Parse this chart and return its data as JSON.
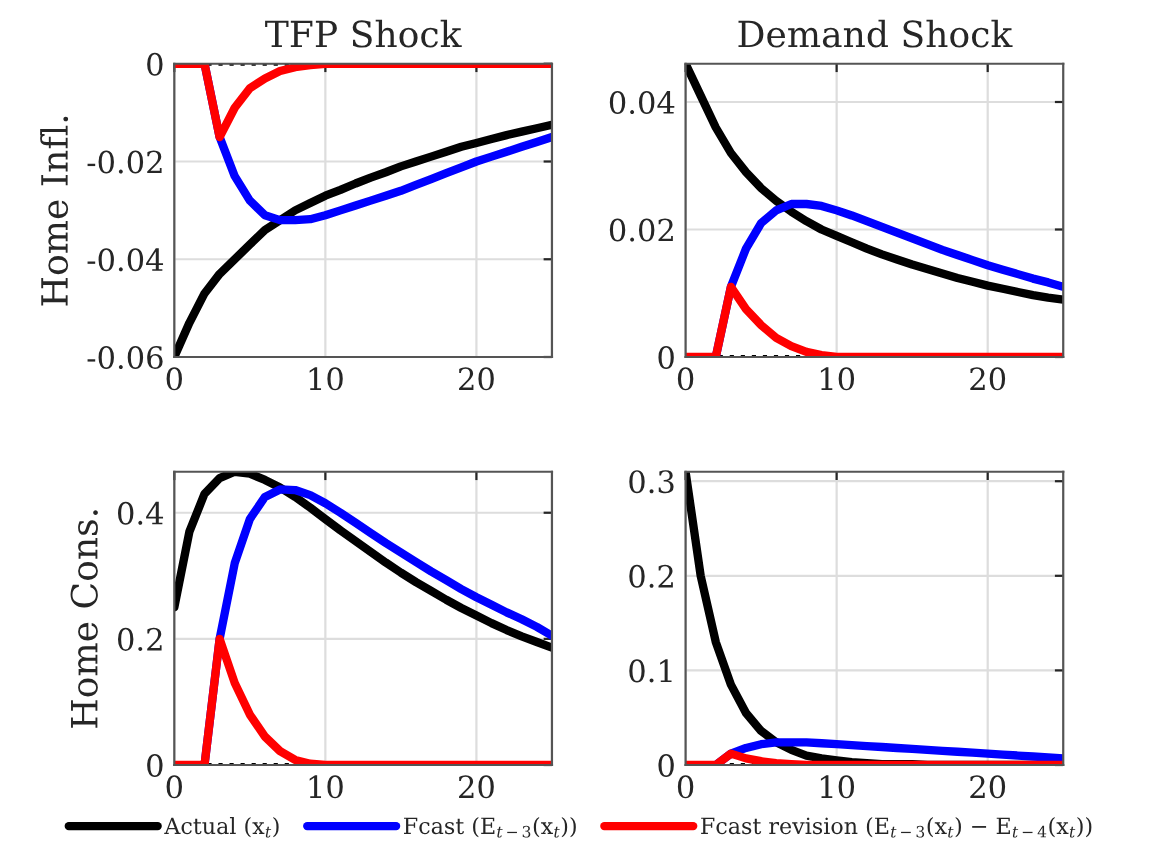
{
  "chart_data": [
    {
      "type": "line",
      "title": "TFP Shock",
      "ylabel": "Home Infl.",
      "x": [
        0,
        1,
        2,
        3,
        4,
        5,
        6,
        7,
        8,
        9,
        10,
        11,
        12,
        13,
        14,
        15,
        16,
        17,
        18,
        19,
        20,
        21,
        22,
        23,
        24,
        25
      ],
      "xlim": [
        0,
        25
      ],
      "xticks": [
        0,
        10,
        20
      ],
      "ylim": [
        -0.06,
        0
      ],
      "yticks": [
        -0.06,
        -0.04,
        -0.02,
        0
      ],
      "grid": true,
      "legend": "bottom",
      "line_style": "solid",
      "ref_lines": [
        {
          "axis": "y",
          "value": 0,
          "color": "#000000",
          "line_style": "dotted"
        }
      ],
      "series": [
        {
          "name": "Actual (x$_{t}$)",
          "color": "#000000",
          "values": [
            -0.06,
            -0.053,
            -0.047,
            -0.043,
            -0.04,
            -0.037,
            -0.034,
            -0.032,
            -0.03,
            -0.0285,
            -0.027,
            -0.0258,
            -0.0245,
            -0.0233,
            -0.0222,
            -0.021,
            -0.02,
            -0.019,
            -0.018,
            -0.017,
            -0.0162,
            -0.0154,
            -0.0146,
            -0.0139,
            -0.0132,
            -0.0125
          ]
        },
        {
          "name": "Fcast (E$_{t−3}$(x$_{t}$))",
          "color": "#0000ff",
          "values": [
            null,
            null,
            0,
            -0.015,
            -0.023,
            -0.028,
            -0.031,
            -0.032,
            -0.032,
            -0.0318,
            -0.031,
            -0.03,
            -0.029,
            -0.028,
            -0.027,
            -0.026,
            -0.0248,
            -0.0236,
            -0.0224,
            -0.0212,
            -0.02,
            -0.019,
            -0.018,
            -0.017,
            -0.016,
            -0.015
          ]
        },
        {
          "name": "Fcast revision (E$_{t−3}$(x$_{t}$) − E$_{t−4}$(x$_{t}$))",
          "color": "#ff0000",
          "values": [
            0,
            0,
            0,
            -0.015,
            -0.009,
            -0.005,
            -0.003,
            -0.0015,
            -0.0007,
            -0.0003,
            0,
            0,
            0,
            0,
            0,
            0,
            0,
            0,
            0,
            0,
            0,
            0,
            0,
            0,
            0,
            0
          ]
        }
      ]
    },
    {
      "type": "line",
      "title": "Demand Shock",
      "x": [
        0,
        1,
        2,
        3,
        4,
        5,
        6,
        7,
        8,
        9,
        10,
        11,
        12,
        13,
        14,
        15,
        16,
        17,
        18,
        19,
        20,
        21,
        22,
        23,
        24,
        25
      ],
      "xlim": [
        0,
        25
      ],
      "xticks": [
        0,
        10,
        20
      ],
      "ylim": [
        0,
        0.046
      ],
      "yticks": [
        0,
        0.02,
        0.04
      ],
      "grid": true,
      "line_style": "solid",
      "ref_lines": [
        {
          "axis": "y",
          "value": 0,
          "color": "#000000",
          "line_style": "dotted"
        }
      ],
      "series": [
        {
          "color": "#000000",
          "values": [
            0.046,
            0.041,
            0.036,
            0.032,
            0.029,
            0.0265,
            0.0245,
            0.0228,
            0.0213,
            0.02,
            0.019,
            0.018,
            0.017,
            0.0161,
            0.0153,
            0.0145,
            0.0138,
            0.0131,
            0.0124,
            0.0118,
            0.0112,
            0.0107,
            0.0102,
            0.0097,
            0.0093,
            0.009
          ]
        },
        {
          "color": "#0000ff",
          "values": [
            null,
            null,
            0,
            0.011,
            0.017,
            0.021,
            0.023,
            0.024,
            0.024,
            0.0237,
            0.023,
            0.0222,
            0.0213,
            0.0204,
            0.0195,
            0.0186,
            0.0177,
            0.0168,
            0.016,
            0.0152,
            0.0144,
            0.0137,
            0.013,
            0.0123,
            0.0117,
            0.011
          ]
        },
        {
          "color": "#ff0000",
          "values": [
            0,
            0,
            0,
            0.011,
            0.0075,
            0.005,
            0.003,
            0.0017,
            0.0008,
            0.0003,
            0,
            0,
            0,
            0,
            0,
            0,
            0,
            0,
            0,
            0,
            0,
            0,
            0,
            0,
            0,
            0
          ]
        }
      ]
    },
    {
      "type": "line",
      "ylabel": "Home Cons.",
      "x": [
        0,
        1,
        2,
        3,
        4,
        5,
        6,
        7,
        8,
        9,
        10,
        11,
        12,
        13,
        14,
        15,
        16,
        17,
        18,
        19,
        20,
        21,
        22,
        23,
        24,
        25
      ],
      "xlim": [
        0,
        25
      ],
      "xticks": [
        0,
        10,
        20
      ],
      "ylim": [
        0,
        0.465
      ],
      "yticks": [
        0,
        0.2,
        0.4
      ],
      "grid": true,
      "line_style": "solid",
      "ref_lines": [
        {
          "axis": "y",
          "value": 0,
          "color": "#000000",
          "line_style": "dotted"
        }
      ],
      "series": [
        {
          "color": "#000000",
          "values": [
            0.25,
            0.37,
            0.43,
            0.455,
            0.465,
            0.462,
            0.452,
            0.44,
            0.425,
            0.408,
            0.39,
            0.372,
            0.355,
            0.338,
            0.321,
            0.305,
            0.29,
            0.276,
            0.262,
            0.249,
            0.237,
            0.225,
            0.214,
            0.204,
            0.195,
            0.186
          ]
        },
        {
          "color": "#0000ff",
          "values": [
            null,
            null,
            0,
            0.2,
            0.32,
            0.39,
            0.425,
            0.437,
            0.436,
            0.428,
            0.415,
            0.4,
            0.384,
            0.368,
            0.352,
            0.337,
            0.322,
            0.307,
            0.293,
            0.279,
            0.266,
            0.254,
            0.242,
            0.231,
            0.219,
            0.205
          ]
        },
        {
          "color": "#ff0000",
          "values": [
            0,
            0,
            0,
            0.2,
            0.13,
            0.08,
            0.045,
            0.022,
            0.008,
            0.002,
            0,
            0,
            0,
            0,
            0,
            0,
            0,
            0,
            0,
            0,
            0,
            0,
            0,
            0,
            0,
            0
          ]
        }
      ]
    },
    {
      "type": "line",
      "x": [
        0,
        1,
        2,
        3,
        4,
        5,
        6,
        7,
        8,
        9,
        10,
        11,
        12,
        13,
        14,
        15,
        16,
        17,
        18,
        19,
        20,
        21,
        22,
        23,
        24,
        25
      ],
      "xlim": [
        0,
        25
      ],
      "xticks": [
        0,
        10,
        20
      ],
      "ylim": [
        0,
        0.31
      ],
      "yticks": [
        0,
        0.1,
        0.2,
        0.3
      ],
      "grid": true,
      "line_style": "solid",
      "ref_lines": [
        {
          "axis": "y",
          "value": 0,
          "color": "#000000",
          "line_style": "dotted"
        }
      ],
      "series": [
        {
          "color": "#000000",
          "values": [
            0.31,
            0.2,
            0.13,
            0.085,
            0.055,
            0.036,
            0.024,
            0.016,
            0.01,
            0.007,
            0.005,
            0.003,
            0.002,
            0.001,
            0.001,
            0.001,
            0,
            0,
            0,
            0,
            0,
            0,
            0,
            0,
            0,
            0
          ]
        },
        {
          "color": "#0000ff",
          "values": [
            null,
            null,
            0,
            0.012,
            0.018,
            0.022,
            0.024,
            0.024,
            0.024,
            0.023,
            0.022,
            0.021,
            0.02,
            0.019,
            0.018,
            0.017,
            0.016,
            0.015,
            0.014,
            0.013,
            0.012,
            0.011,
            0.01,
            0.009,
            0.008,
            0.007
          ]
        },
        {
          "color": "#ff0000",
          "values": [
            0,
            0,
            0,
            0.012,
            0.007,
            0.004,
            0.002,
            0.001,
            0,
            0,
            0,
            0,
            0,
            0,
            0,
            0,
            0,
            0,
            0,
            0,
            0,
            0,
            0,
            0,
            0,
            0
          ]
        }
      ]
    }
  ]
}
